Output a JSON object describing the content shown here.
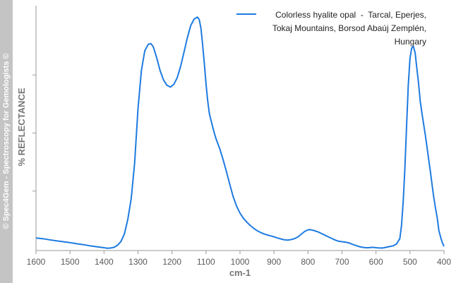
{
  "watermark": "© Spec4Gem - Spectroscopy for Gemologists ©",
  "chart_data": {
    "type": "line",
    "xlabel": "cm-1",
    "ylabel": "% REFLECTANCE",
    "xlim": [
      1600,
      400
    ],
    "x_reversed": true,
    "xticks": [
      1600,
      1500,
      1400,
      1300,
      1200,
      1100,
      1000,
      900,
      800,
      700,
      600,
      500,
      400
    ],
    "y_tick_labels_shown": false,
    "y_scale": "relative (0 = baseline, 100 = maximum)",
    "grid": false,
    "legend_position": "top-right",
    "series": [
      {
        "name": "Colorless hyalite opal  -  Tarcal, Eperjes, Tokaj Mountains, Borsod Abaúj Zemplén, Hungary",
        "color": "#1e7be0",
        "x": [
          1600,
          1580,
          1560,
          1540,
          1520,
          1500,
          1480,
          1460,
          1440,
          1420,
          1400,
          1390,
          1380,
          1370,
          1360,
          1350,
          1340,
          1330,
          1320,
          1310,
          1300,
          1290,
          1280,
          1270,
          1262,
          1255,
          1245,
          1235,
          1225,
          1215,
          1205,
          1195,
          1185,
          1175,
          1165,
          1155,
          1145,
          1135,
          1125,
          1120,
          1115,
          1110,
          1105,
          1100,
          1095,
          1090,
          1085,
          1080,
          1075,
          1070,
          1060,
          1050,
          1040,
          1030,
          1020,
          1010,
          1000,
          990,
          980,
          970,
          960,
          950,
          940,
          930,
          920,
          910,
          900,
          890,
          880,
          870,
          860,
          850,
          840,
          830,
          820,
          810,
          800,
          795,
          790,
          785,
          780,
          770,
          760,
          750,
          740,
          730,
          720,
          710,
          700,
          690,
          680,
          670,
          660,
          650,
          640,
          630,
          620,
          610,
          600,
          590,
          580,
          570,
          560,
          550,
          540,
          530,
          525,
          520,
          515,
          510,
          505,
          500,
          495,
          490,
          485,
          480,
          475,
          470,
          465,
          460,
          455,
          450,
          445,
          440,
          435,
          430,
          425,
          420,
          415,
          410,
          405,
          400
        ],
        "y": [
          4.8,
          4.5,
          4.0,
          3.6,
          3.2,
          2.8,
          2.3,
          1.9,
          1.4,
          1.0,
          0.6,
          0.4,
          0.5,
          0.8,
          1.7,
          3.3,
          6.5,
          12.9,
          21.8,
          37,
          60.4,
          76.9,
          85.4,
          88.2,
          88.5,
          87.1,
          82.4,
          76.9,
          72.9,
          70.6,
          69.8,
          70.9,
          73.7,
          78.5,
          84.6,
          90.9,
          96.3,
          99.1,
          99.9,
          98.9,
          95.3,
          88.2,
          80.2,
          71.4,
          64.0,
          58.4,
          55.3,
          52.4,
          49.7,
          47.3,
          43.4,
          38.7,
          33.5,
          27.8,
          22.5,
          18.5,
          15.5,
          13.3,
          11.6,
          10.2,
          9.0,
          8.0,
          7.2,
          6.6,
          6.1,
          5.7,
          5.3,
          4.8,
          4.4,
          4.0,
          3.9,
          4.1,
          4.5,
          5.2,
          6.4,
          7.6,
          8.3,
          8.4,
          8.3,
          8.1,
          7.9,
          7.4,
          6.7,
          6.0,
          5.3,
          4.6,
          3.9,
          3.4,
          3.2,
          3.0,
          2.7,
          2.1,
          1.6,
          1.1,
          0.8,
          0.6,
          0.6,
          0.8,
          0.6,
          0.5,
          0.5,
          0.8,
          1.1,
          1.4,
          2.2,
          4.5,
          10.1,
          20.4,
          34.9,
          53.1,
          70.6,
          82.1,
          86.6,
          87.3,
          84.6,
          77.9,
          71.6,
          63.8,
          58.6,
          53.9,
          49.2,
          44.0,
          38.7,
          33.5,
          27.7,
          22.3,
          17.6,
          13.5,
          7.9,
          5.2,
          2.8,
          1.2
        ]
      }
    ]
  }
}
